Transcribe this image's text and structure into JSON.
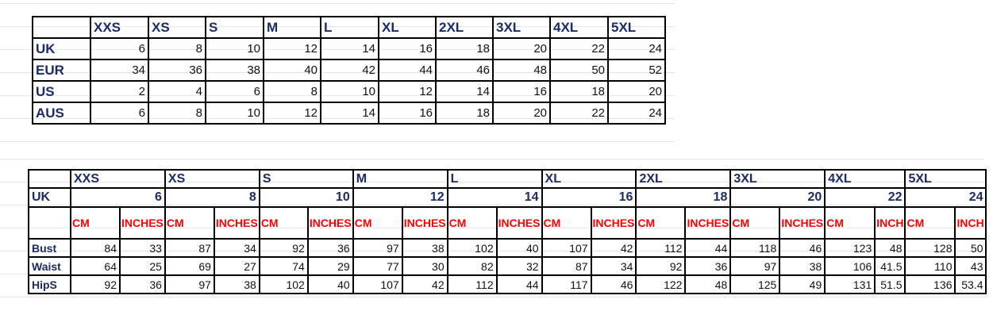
{
  "conversion_table": {
    "sizes": [
      "XXS",
      "XS",
      "S",
      "M",
      "L",
      "XL",
      "2XL",
      "3XL",
      "4XL",
      "5XL"
    ],
    "rows": [
      {
        "label": "UK",
        "values": [
          "6",
          "8",
          "10",
          "12",
          "14",
          "16",
          "18",
          "20",
          "22",
          "24"
        ]
      },
      {
        "label": "EUR",
        "values": [
          "34",
          "36",
          "38",
          "40",
          "42",
          "44",
          "46",
          "48",
          "50",
          "52"
        ]
      },
      {
        "label": "US",
        "values": [
          "2",
          "4",
          "6",
          "8",
          "10",
          "12",
          "14",
          "16",
          "18",
          "20"
        ]
      },
      {
        "label": "AUS",
        "values": [
          "6",
          "8",
          "10",
          "12",
          "14",
          "16",
          "18",
          "20",
          "22",
          "24"
        ]
      }
    ]
  },
  "measurement_table": {
    "uk_label": "UK",
    "sizes": [
      {
        "name": "XXS",
        "uk": "6",
        "cm": "CM",
        "in": "INCHES"
      },
      {
        "name": "XS",
        "uk": "8",
        "cm": "CM",
        "in": "INCHES"
      },
      {
        "name": "S",
        "uk": "10",
        "cm": "CM",
        "in": "INCHES"
      },
      {
        "name": "M",
        "uk": "12",
        "cm": "CM",
        "in": "INCHES"
      },
      {
        "name": "L",
        "uk": "14",
        "cm": "CM",
        "in": "INCHES"
      },
      {
        "name": "XL",
        "uk": "16",
        "cm": "CM",
        "in": "INCHES"
      },
      {
        "name": "2XL",
        "uk": "18",
        "cm": "CM",
        "in": "INCHES"
      },
      {
        "name": "3XL",
        "uk": "20",
        "cm": "CM",
        "in": "INCHES"
      },
      {
        "name": "4XL",
        "uk": "22",
        "cm": "CM",
        "in": "INCH"
      },
      {
        "name": "5XL",
        "uk": "24",
        "cm": "CM",
        "in": "INCH"
      }
    ],
    "rows": [
      {
        "label": "Bust",
        "values": [
          "84",
          "33",
          "87",
          "34",
          "92",
          "36",
          "97",
          "38",
          "102",
          "40",
          "107",
          "42",
          "112",
          "44",
          "118",
          "46",
          "123",
          "48",
          "128",
          "50"
        ]
      },
      {
        "label": "Waist",
        "values": [
          "64",
          "25",
          "69",
          "27",
          "74",
          "29",
          "77",
          "30",
          "82",
          "32",
          "87",
          "34",
          "92",
          "36",
          "97",
          "38",
          "106",
          "41.5",
          "110",
          "43"
        ]
      },
      {
        "label": "HipS",
        "values": [
          "92",
          "36",
          "97",
          "38",
          "102",
          "40",
          "107",
          "42",
          "112",
          "44",
          "117",
          "46",
          "122",
          "48",
          "125",
          "49",
          "131",
          "51.5",
          "136",
          "53.4"
        ]
      }
    ]
  },
  "colors": {
    "header_text": "#1c2a66",
    "unit_text": "#ff0000",
    "border": "#000000"
  }
}
